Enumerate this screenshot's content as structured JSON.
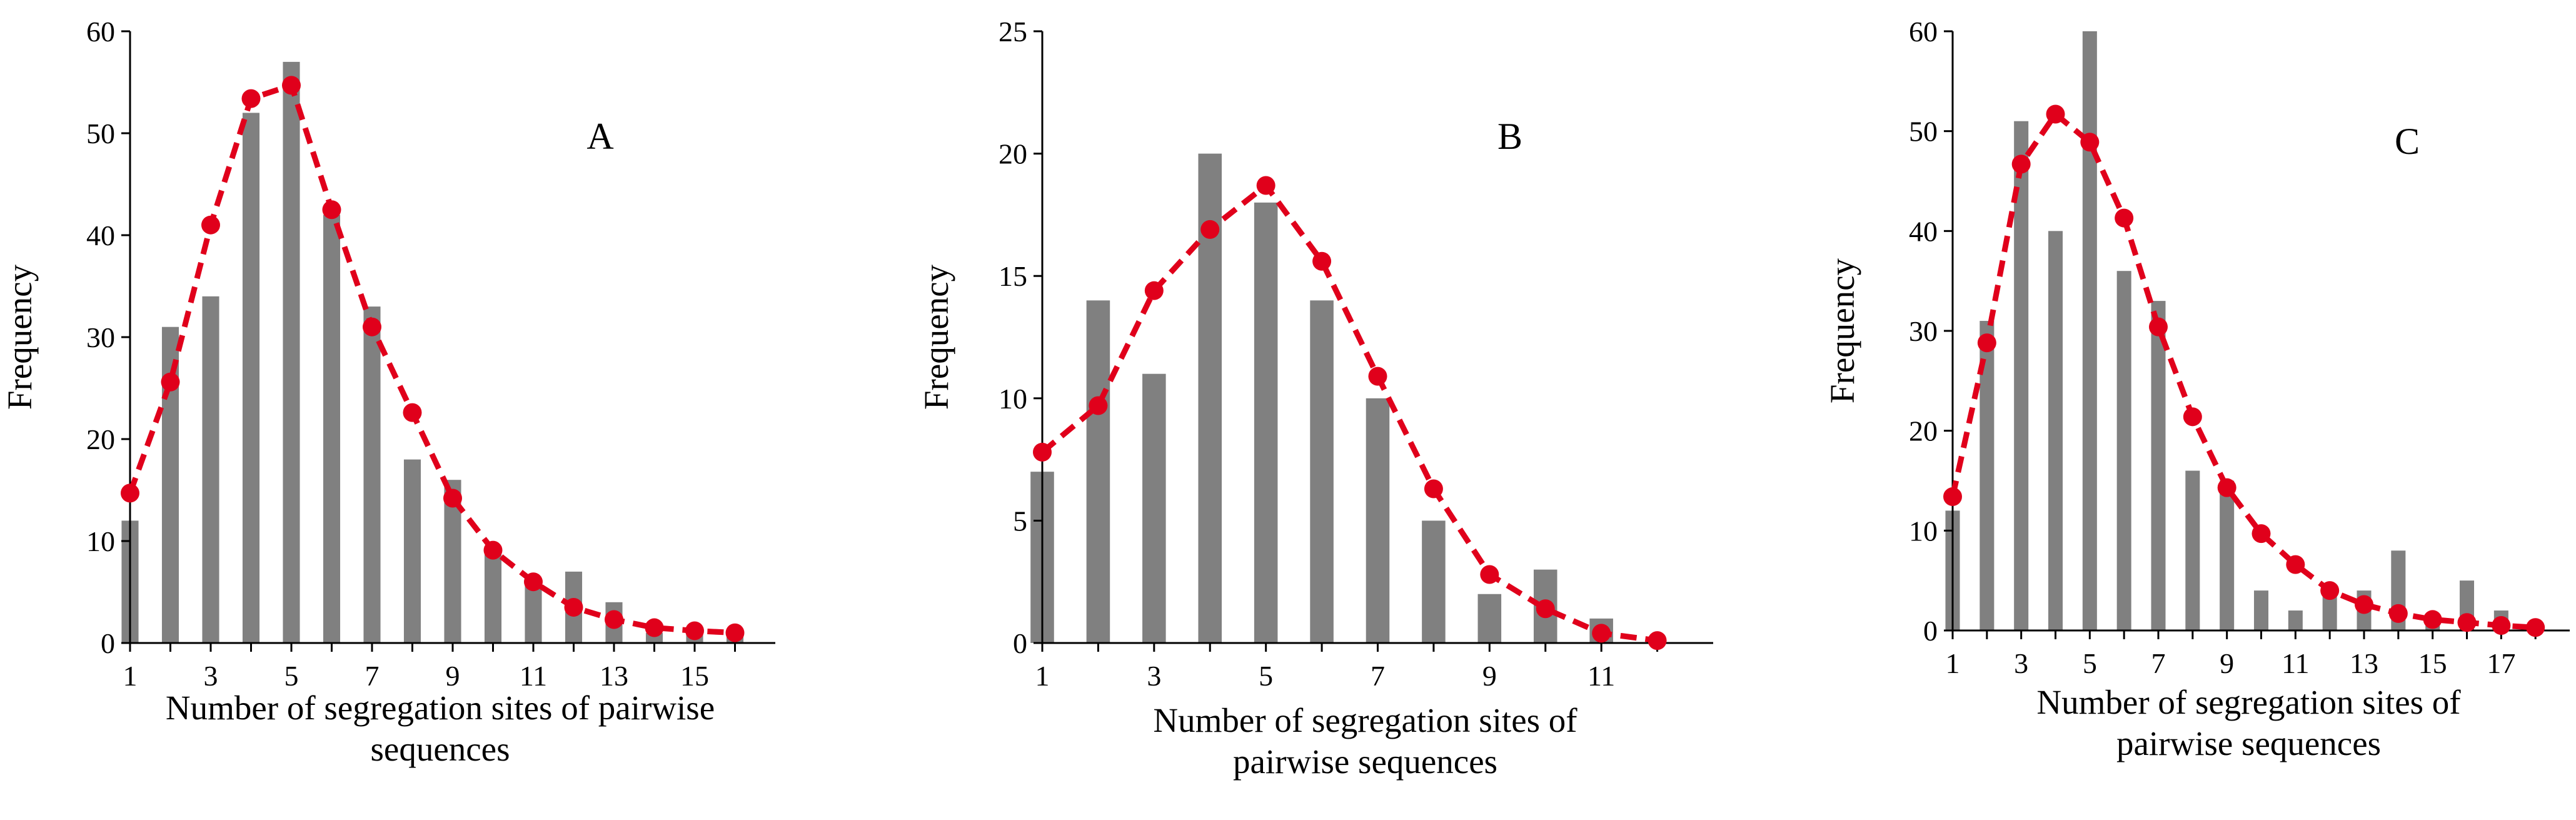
{
  "chart_data": [
    {
      "type": "bar",
      "panel_label": "A",
      "xlabel": [
        "Number of segregation sites of pairwise",
        "sequences"
      ],
      "ylabel": "Frequency",
      "ylim": [
        0,
        60
      ],
      "yticks": [
        0,
        10,
        20,
        30,
        40,
        50,
        60
      ],
      "xticks": [
        1,
        3,
        5,
        7,
        9,
        11,
        13,
        15
      ],
      "x": [
        1,
        2,
        3,
        4,
        5,
        6,
        7,
        8,
        9,
        10,
        11,
        12,
        13,
        14,
        15,
        16
      ],
      "bar_values": [
        12,
        31,
        34,
        52,
        57,
        42,
        33,
        18,
        16,
        9,
        6,
        7,
        4,
        1,
        1,
        1
      ],
      "fit_values": [
        14.7,
        25.6,
        41.0,
        53.4,
        54.7,
        42.5,
        31.0,
        22.6,
        14.2,
        9.1,
        6.0,
        3.5,
        2.3,
        1.5,
        1.2,
        1.0
      ],
      "bar_color": "#808080",
      "line_color": "#e0001b"
    },
    {
      "type": "bar",
      "panel_label": "B",
      "xlabel": [
        "Number of segregation sites of",
        "pairwise sequences"
      ],
      "ylabel": "Frequency",
      "ylim": [
        0,
        25
      ],
      "yticks": [
        0,
        5,
        10,
        15,
        20,
        25
      ],
      "xticks": [
        1,
        3,
        5,
        7,
        9,
        11
      ],
      "x": [
        1,
        2,
        3,
        4,
        5,
        6,
        7,
        8,
        9,
        10,
        11,
        12
      ],
      "bar_values": [
        7,
        14,
        11,
        20,
        18,
        14,
        10,
        5,
        2,
        3,
        1,
        0
      ],
      "fit_values": [
        7.8,
        9.7,
        14.4,
        16.9,
        18.7,
        15.6,
        10.9,
        6.3,
        2.8,
        1.4,
        0.4,
        0.1
      ],
      "bar_color": "#808080",
      "line_color": "#e0001b"
    },
    {
      "type": "bar",
      "panel_label": "C",
      "xlabel": [
        "Number of segregation sites of",
        "pairwise sequences"
      ],
      "ylabel": "Frequency",
      "ylim": [
        0,
        60
      ],
      "yticks": [
        0,
        10,
        20,
        30,
        40,
        50,
        60
      ],
      "xticks": [
        1,
        3,
        5,
        7,
        9,
        11,
        13,
        15,
        17
      ],
      "x": [
        1,
        2,
        3,
        4,
        5,
        6,
        7,
        8,
        9,
        10,
        11,
        12,
        13,
        14,
        15,
        16,
        17,
        18
      ],
      "bar_values": [
        12,
        31,
        51,
        40,
        60,
        36,
        33,
        16,
        15,
        4,
        2,
        4,
        4,
        8,
        1,
        5,
        2,
        0
      ],
      "fit_values": [
        13.4,
        28.8,
        46.7,
        51.7,
        48.9,
        41.3,
        30.4,
        21.4,
        14.3,
        9.7,
        6.6,
        4.0,
        2.6,
        1.7,
        1.1,
        0.8,
        0.5,
        0.3
      ],
      "bar_color": "#808080",
      "line_color": "#e0001b"
    }
  ]
}
